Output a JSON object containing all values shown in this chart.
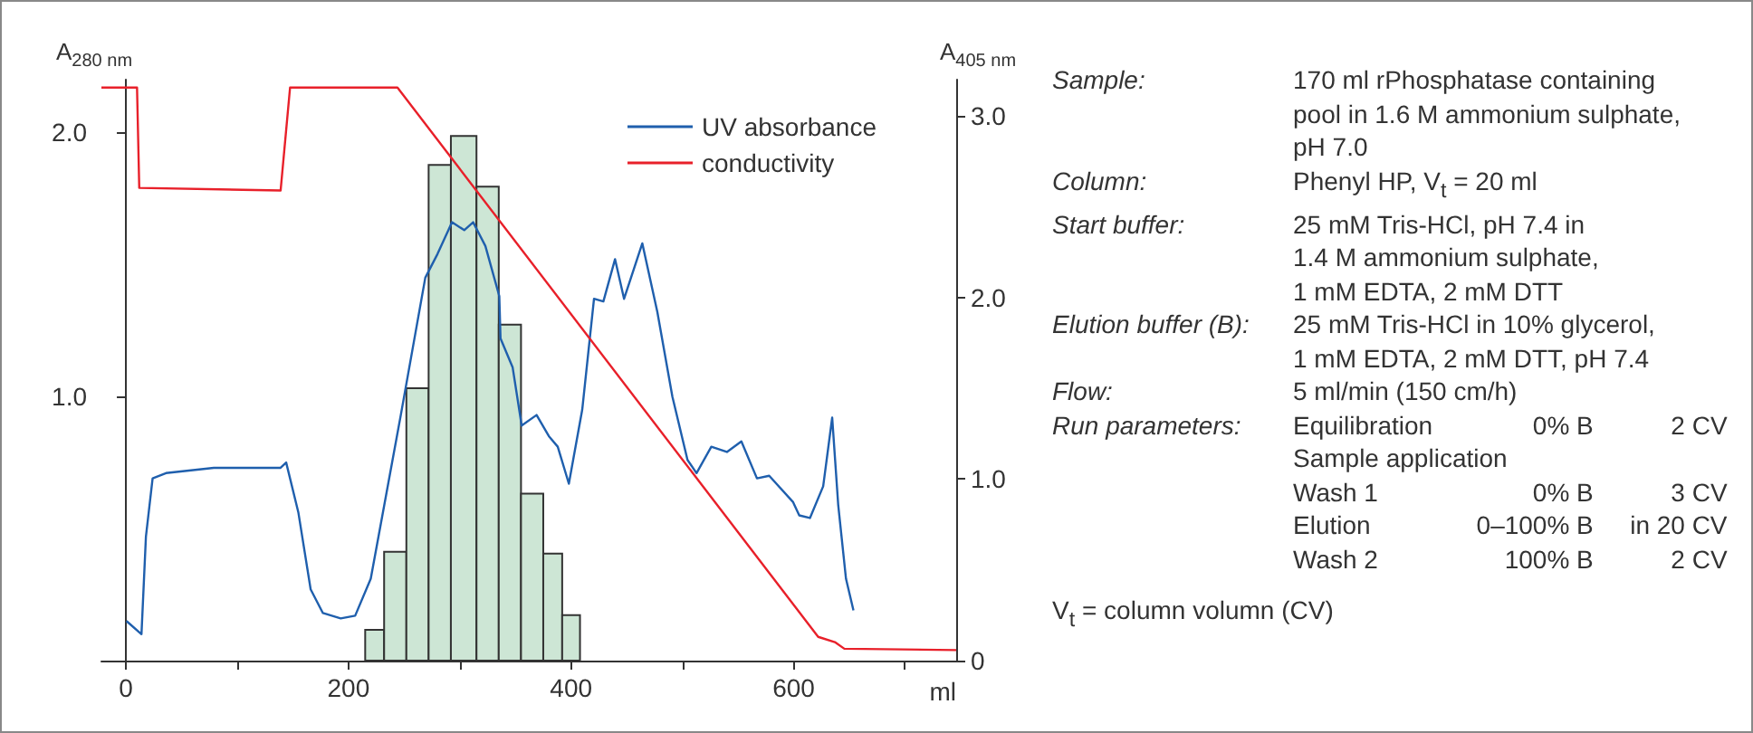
{
  "chart_data": {
    "type": "line",
    "xlabel": "ml",
    "ylabel": "A$_{280 nm}$",
    "y2label": "A$_{405 nm}$",
    "xlim": [
      -22,
      746
    ],
    "xticks": [
      0,
      {
        "value": 100,
        "label": null
      },
      200,
      {
        "value": 300,
        "label": null
      },
      400,
      {
        "value": 500,
        "label": null
      },
      600,
      {
        "value": 700,
        "label": null
      }
    ],
    "ylim": [
      0,
      2.2
    ],
    "yticks": [
      {
        "value": 1,
        "label": "1.0"
      },
      {
        "value": 2,
        "label": "2.0"
      }
    ],
    "y2lim": [
      0,
      3.2
    ],
    "y2ticks": [
      0,
      {
        "value": 1,
        "label": "1.0"
      },
      {
        "value": 2,
        "label": "2.0"
      },
      {
        "value": 3,
        "label": "3.0"
      }
    ],
    "legend": "top right",
    "series": [
      {
        "type": "histogram",
        "axis": "y2",
        "color": "#cde6d5",
        "bins": [
          215,
          232,
          252,
          272,
          292,
          315,
          335,
          355,
          375,
          392,
          408
        ],
        "values": [
          0.17,
          0.6,
          1.5,
          2.73,
          2.89,
          2.61,
          1.85,
          0.92,
          0.59,
          0.25
        ]
      },
      {
        "name": "UV absorbance",
        "color": "#1f5fad",
        "x": [
          0.5,
          14,
          18,
          24,
          36,
          79,
          139,
          144,
          155,
          166,
          177,
          193,
          206,
          220,
          247,
          269,
          280,
          293,
          304,
          312,
          323,
          335.5,
          336.6,
          347.5,
          355.6,
          369,
          380,
          388,
          398,
          410,
          420.6,
          429,
          439.5,
          447.6,
          464,
          477.5,
          491,
          504.6,
          512.7,
          526,
          540,
          553,
          567,
          578,
          599.5,
          605,
          614.6,
          626.5,
          634.6,
          640,
          647,
          653.7
        ],
        "values": [
          0.15,
          0.1,
          0.47,
          0.69,
          0.71,
          0.73,
          0.73,
          0.75,
          0.56,
          0.27,
          0.18,
          0.16,
          0.17,
          0.31,
          0.93,
          1.45,
          1.54,
          1.66,
          1.63,
          1.66,
          1.57,
          1.38,
          1.22,
          1.11,
          0.89,
          0.93,
          0.85,
          0.81,
          0.67,
          0.95,
          1.37,
          1.36,
          1.52,
          1.37,
          1.58,
          1.32,
          1.0,
          0.76,
          0.71,
          0.81,
          0.79,
          0.83,
          0.69,
          0.7,
          0.6,
          0.55,
          0.54,
          0.66,
          0.92,
          0.59,
          0.31,
          0.19
        ]
      },
      {
        "name": "conductivity",
        "color": "#e8202a",
        "x": [
          -22,
          10,
          12,
          139,
          147.5,
          244,
          622,
          637,
          645.5,
          746
        ],
        "values": [
          2.17,
          2.17,
          1.79,
          1.78,
          2.17,
          2.17,
          0.09,
          0.07,
          0.045,
          0.04
        ]
      }
    ],
    "annotations": [
      "Sample: 170 ml rPhosphatase containing\npool in 1.6 M ammonium sulphate,\npH 7.0",
      "Column: Phenyl HP, V$_{t}$ = 20 ml",
      "Start buffer: 25 mM Tris-HCl, pH 7.4 in\n1.4 M ammonium sulphate,\n1 mM EDTA, 2 mM DTT",
      "Elution buffer (B): 25 mM Tris-HCl in 10% glycerol,\n1 mM EDTA, 2 mM DTT, pH 7.4",
      "Flow: 5 ml/min (150 cm/h)",
      "Run parameters: Equilibration\t0% B\t2 CV\nSample application\nWash 1\t0% B\t3 CV\nElution\t0–100% B\tin 20 CV\nWash 2\t100% B\t2 CV",
      "V$_{t}$ = column volumn (CV)"
    ]
  }
}
